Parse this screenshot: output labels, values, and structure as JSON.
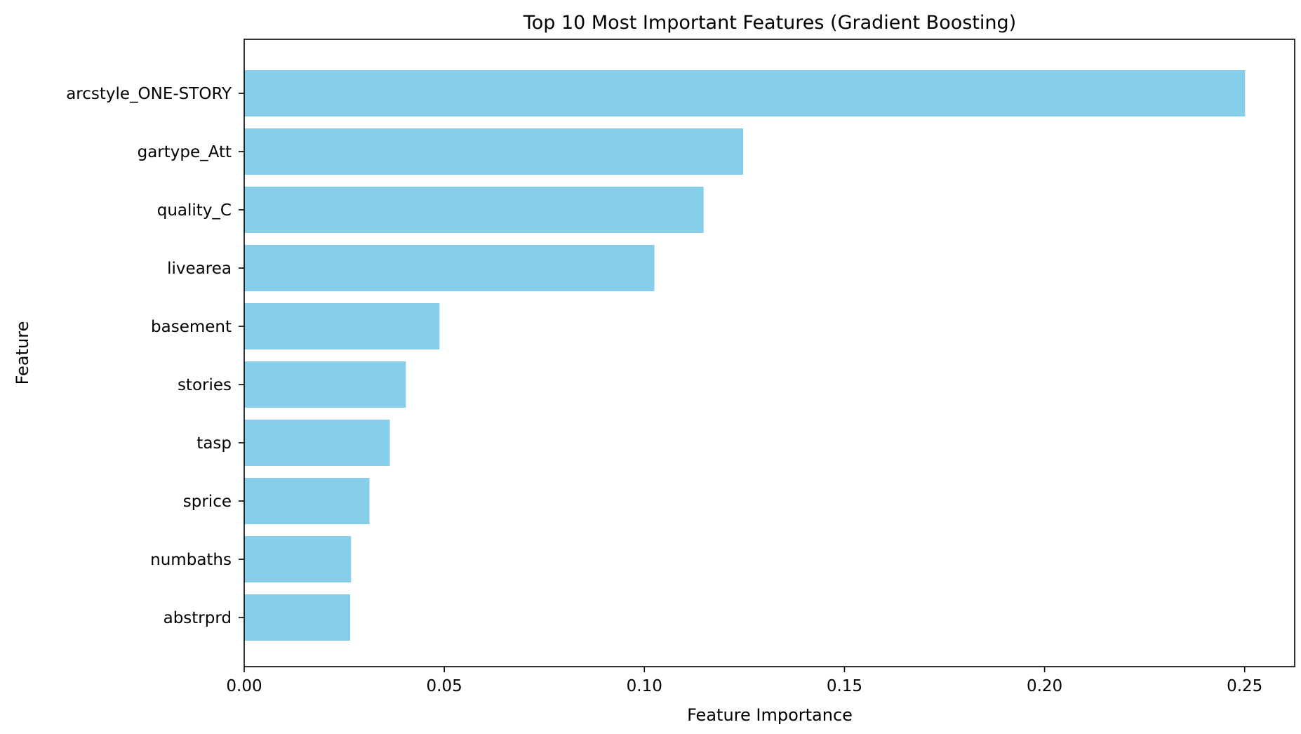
{
  "chart_data": {
    "type": "bar",
    "orientation": "horizontal",
    "title": "Top 10 Most Important Features (Gradient Boosting)",
    "xlabel": "Feature Importance",
    "ylabel": "Feature",
    "categories": [
      "arcstyle_ONE-STORY",
      "gartype_Att",
      "quality_C",
      "livearea",
      "basement",
      "stories",
      "tasp",
      "sprice",
      "numbaths",
      "abstrprd"
    ],
    "values": [
      0.2501,
      0.1247,
      0.1148,
      0.1025,
      0.0488,
      0.0404,
      0.0364,
      0.0313,
      0.0267,
      0.0265
    ],
    "xlim": [
      0,
      0.2625
    ],
    "xticks": [
      0,
      0.05,
      0.1,
      0.15,
      0.2,
      0.25
    ],
    "xtick_labels": [
      "0.00",
      "0.05",
      "0.10",
      "0.15",
      "0.20",
      "0.25"
    ],
    "bar_color": "#87ceeb",
    "grid": false,
    "legend": "none"
  }
}
